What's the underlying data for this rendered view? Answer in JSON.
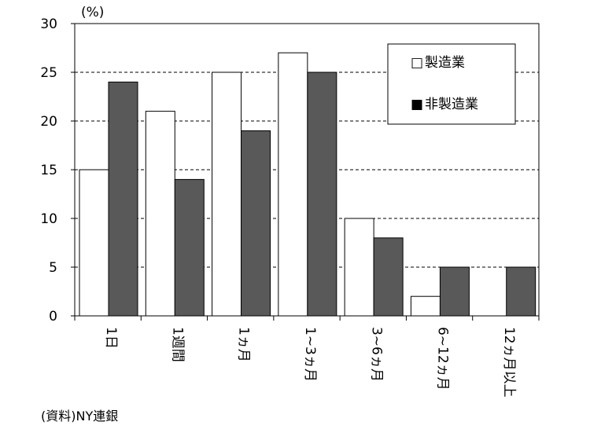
{
  "chart_data": {
    "type": "bar",
    "unit_label": "(%)",
    "categories": [
      "1日",
      "1週間",
      "1ヵ月",
      "1~3ヵ月",
      "3~6ヵ月",
      "6~12ヵ月",
      "12ヵ月以上"
    ],
    "series": [
      {
        "name": "製造業",
        "values": [
          15,
          21,
          25,
          27,
          10,
          2,
          0
        ],
        "color": "#ffffff"
      },
      {
        "name": "非製造業",
        "values": [
          24,
          14,
          19,
          25,
          8,
          5,
          5
        ],
        "color": "#595959"
      }
    ],
    "ylim": [
      0,
      30
    ],
    "yticks": [
      0,
      5,
      10,
      15,
      20,
      25,
      30
    ],
    "grid": "dashed horizontal",
    "legend_position": "top-right",
    "legend_markers": [
      "□",
      "■"
    ]
  },
  "source_note": "(資料)NY連銀"
}
